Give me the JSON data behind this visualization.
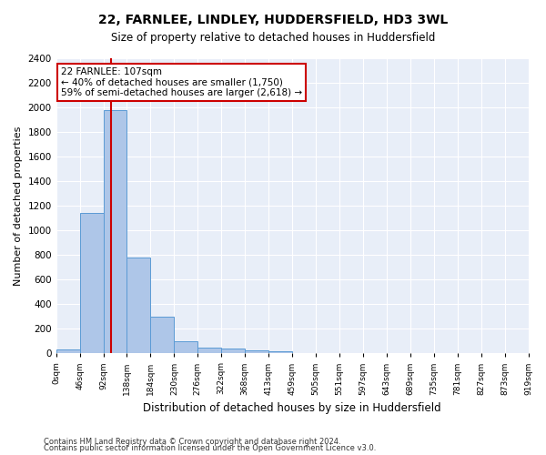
{
  "title": "22, FARNLEE, LINDLEY, HUDDERSFIELD, HD3 3WL",
  "subtitle": "Size of property relative to detached houses in Huddersfield",
  "xlabel": "Distribution of detached houses by size in Huddersfield",
  "ylabel": "Number of detached properties",
  "bar_color": "#aec6e8",
  "bar_edge_color": "#5b9bd5",
  "background_color": "#e8eef8",
  "grid_color": "white",
  "annotation_box_color": "#cc0000",
  "annotation_text": "22 FARNLEE: 107sqm\n← 40% of detached houses are smaller (1,750)\n59% of semi-detached houses are larger (2,618) →",
  "property_line_x": 107,
  "bin_width": 46,
  "num_bins": 20,
  "bar_heights": [
    35,
    1140,
    1980,
    780,
    300,
    100,
    48,
    38,
    25,
    20,
    0,
    0,
    0,
    0,
    0,
    0,
    0,
    0,
    0,
    0
  ],
  "x_tick_labels": [
    "0sqm",
    "46sqm",
    "92sqm",
    "138sqm",
    "184sqm",
    "230sqm",
    "276sqm",
    "322sqm",
    "368sqm",
    "413sqm",
    "459sqm",
    "505sqm",
    "551sqm",
    "597sqm",
    "643sqm",
    "689sqm",
    "735sqm",
    "781sqm",
    "827sqm",
    "873sqm",
    "919sqm"
  ],
  "ylim": [
    0,
    2400
  ],
  "yticks": [
    0,
    200,
    400,
    600,
    800,
    1000,
    1200,
    1400,
    1600,
    1800,
    2000,
    2200,
    2400
  ],
  "footnote1": "Contains HM Land Registry data © Crown copyright and database right 2024.",
  "footnote2": "Contains public sector information licensed under the Open Government Licence v3.0."
}
